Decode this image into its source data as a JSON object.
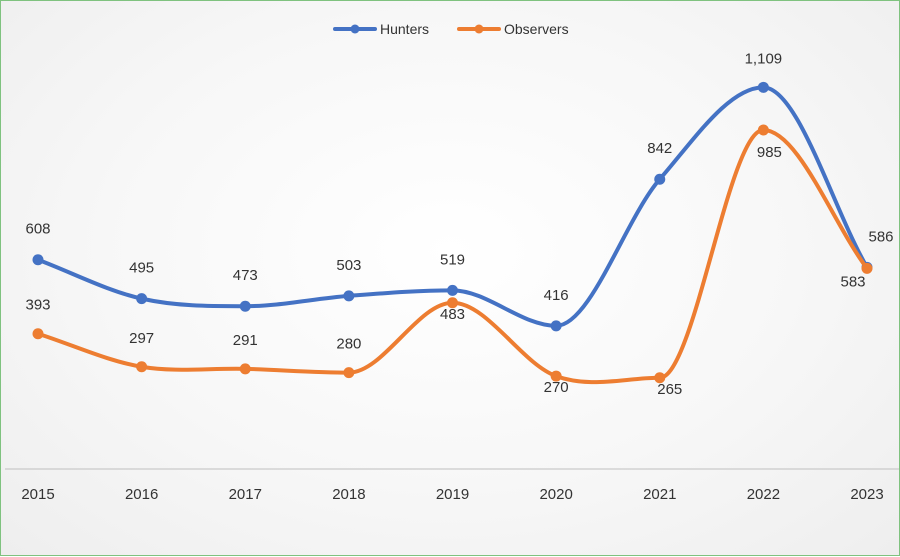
{
  "chart_data": {
    "type": "line",
    "categories": [
      "2015",
      "2016",
      "2017",
      "2018",
      "2019",
      "2020",
      "2021",
      "2022",
      "2023"
    ],
    "series": [
      {
        "name": "Hunters",
        "color": "#4472C4",
        "values": [
          608,
          495,
          473,
          503,
          519,
          416,
          842,
          1109,
          586
        ],
        "labels": [
          "608",
          "495",
          "473",
          "503",
          "519",
          "416",
          "842",
          "1,109",
          "586"
        ]
      },
      {
        "name": "Observers",
        "color": "#ED7D31",
        "values": [
          393,
          297,
          291,
          280,
          483,
          270,
          265,
          985,
          583
        ],
        "labels": [
          "393",
          "297",
          "291",
          "280",
          "483",
          "270",
          "265",
          "985",
          "583"
        ]
      }
    ],
    "ylim": [
      0,
      1200
    ],
    "legend_position": "top-center",
    "smooth": true,
    "grid": false
  }
}
